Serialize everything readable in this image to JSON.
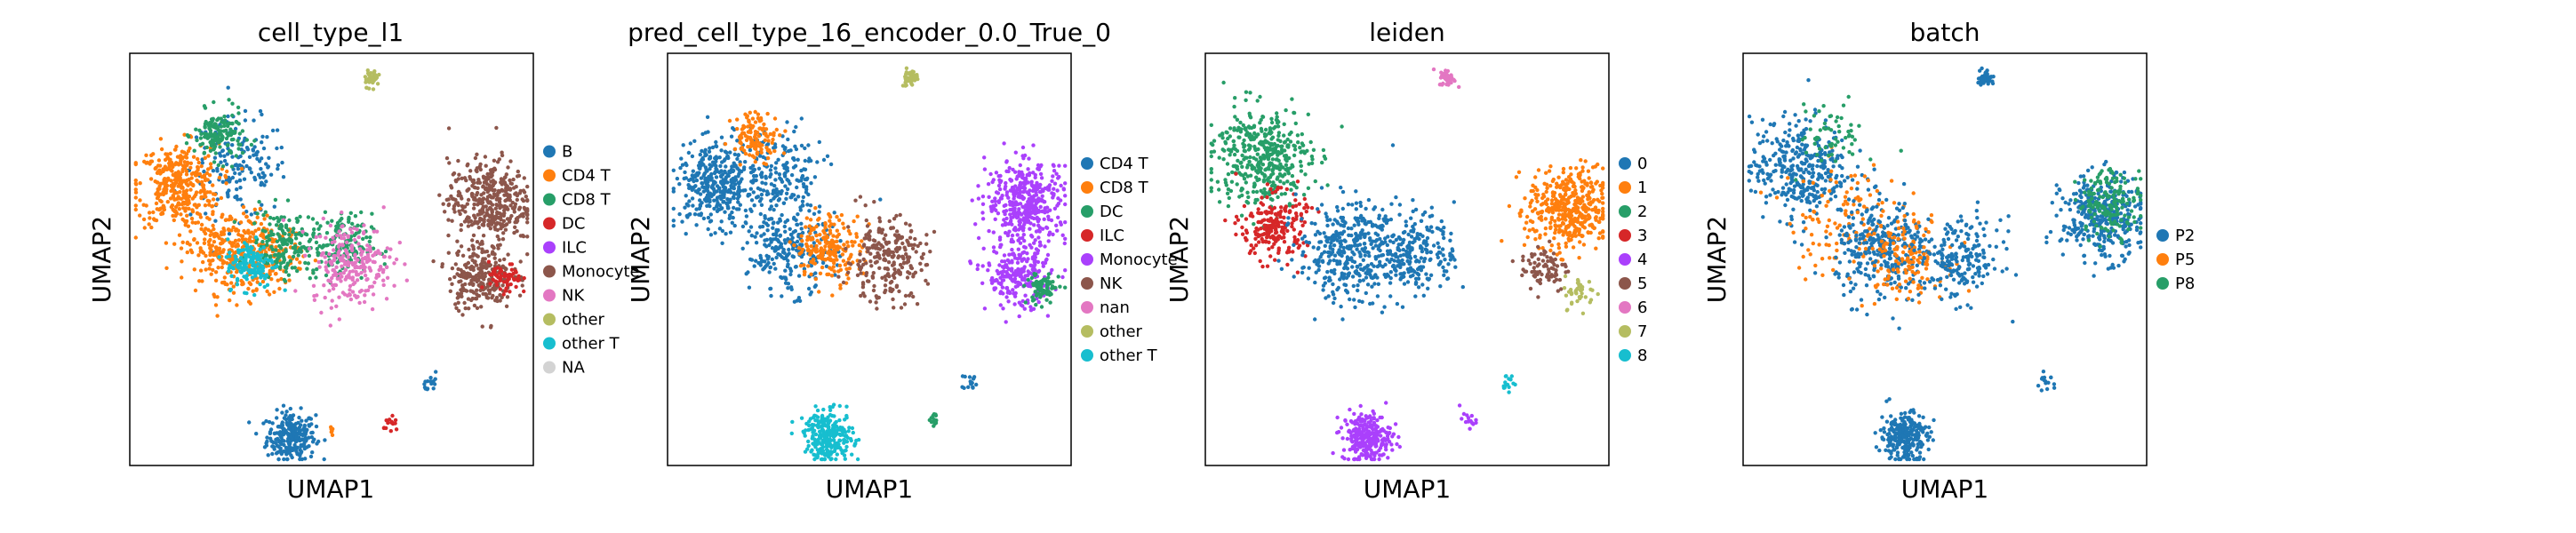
{
  "figure": {
    "background": "#ffffff"
  },
  "chart_data": [
    {
      "type": "scatter",
      "title": "cell_type_l1",
      "xlabel": "UMAP1",
      "ylabel": "UMAP2",
      "legend_placement": "right",
      "legend": [
        {
          "label": "B",
          "color": "#1f77b4"
        },
        {
          "label": "CD4 T",
          "color": "#ff7f0e"
        },
        {
          "label": "CD8 T",
          "color": "#279e68"
        },
        {
          "label": "DC",
          "color": "#d62728"
        },
        {
          "label": "ILC",
          "color": "#aa40fc"
        },
        {
          "label": "Monocyte",
          "color": "#8c564b"
        },
        {
          "label": "NK",
          "color": "#e377c2"
        },
        {
          "label": "other",
          "color": "#b5bd61"
        },
        {
          "label": "other T",
          "color": "#17becf"
        },
        {
          "label": "NA",
          "color": "#d3d3d3"
        }
      ],
      "clusters": [
        {
          "label": "B",
          "x": 0.4,
          "y": 0.07,
          "spread": 0.03,
          "n": 260
        },
        {
          "label": "B",
          "x": 0.27,
          "y": 0.72,
          "spread": 0.06,
          "n": 160
        },
        {
          "label": "CD4 T",
          "x": 0.12,
          "y": 0.68,
          "spread": 0.05,
          "n": 360
        },
        {
          "label": "CD4 T",
          "x": 0.24,
          "y": 0.52,
          "spread": 0.05,
          "n": 260
        },
        {
          "label": "CD4 T",
          "x": 0.35,
          "y": 0.51,
          "spread": 0.04,
          "n": 140
        },
        {
          "label": "CD8 T",
          "x": 0.22,
          "y": 0.8,
          "spread": 0.03,
          "n": 150
        },
        {
          "label": "CD8 T",
          "x": 0.38,
          "y": 0.54,
          "spread": 0.04,
          "n": 160
        },
        {
          "label": "CD8 T",
          "x": 0.52,
          "y": 0.53,
          "spread": 0.04,
          "n": 160
        },
        {
          "label": "other T",
          "x": 0.3,
          "y": 0.49,
          "spread": 0.03,
          "n": 140
        },
        {
          "label": "NK",
          "x": 0.55,
          "y": 0.49,
          "spread": 0.05,
          "n": 240
        },
        {
          "label": "Monocyte",
          "x": 0.89,
          "y": 0.64,
          "spread": 0.05,
          "n": 400
        },
        {
          "label": "Monocyte",
          "x": 0.87,
          "y": 0.46,
          "spread": 0.04,
          "n": 260
        },
        {
          "label": "DC",
          "x": 0.93,
          "y": 0.45,
          "spread": 0.02,
          "n": 60
        },
        {
          "label": "other",
          "x": 0.6,
          "y": 0.94,
          "spread": 0.01,
          "n": 40
        },
        {
          "label": "B",
          "x": 0.75,
          "y": 0.2,
          "spread": 0.01,
          "n": 15
        },
        {
          "label": "DC",
          "x": 0.65,
          "y": 0.1,
          "spread": 0.01,
          "n": 15
        },
        {
          "label": "CD4 T",
          "x": 0.5,
          "y": 0.08,
          "spread": 0.005,
          "n": 6
        }
      ]
    },
    {
      "type": "scatter",
      "title": "pred_cell_type_16_encoder_0.0_True_0",
      "xlabel": "UMAP1",
      "ylabel": "UMAP2",
      "legend_placement": "right",
      "legend": [
        {
          "label": "CD4 T",
          "color": "#1f77b4"
        },
        {
          "label": "CD8 T",
          "color": "#ff7f0e"
        },
        {
          "label": "DC",
          "color": "#279e68"
        },
        {
          "label": "ILC",
          "color": "#d62728"
        },
        {
          "label": "Monocyte",
          "color": "#aa40fc"
        },
        {
          "label": "NK",
          "color": "#8c564b"
        },
        {
          "label": "nan",
          "color": "#e377c2"
        },
        {
          "label": "other",
          "color": "#b5bd61"
        },
        {
          "label": "other T",
          "color": "#17becf"
        }
      ],
      "clusters": [
        {
          "label": "CD4 T",
          "x": 0.12,
          "y": 0.68,
          "spread": 0.05,
          "n": 360
        },
        {
          "label": "CD4 T",
          "x": 0.27,
          "y": 0.7,
          "spread": 0.06,
          "n": 200
        },
        {
          "label": "CD4 T",
          "x": 0.3,
          "y": 0.52,
          "spread": 0.05,
          "n": 240
        },
        {
          "label": "CD8 T",
          "x": 0.22,
          "y": 0.8,
          "spread": 0.03,
          "n": 120
        },
        {
          "label": "CD8 T",
          "x": 0.4,
          "y": 0.53,
          "spread": 0.04,
          "n": 200
        },
        {
          "label": "NK",
          "x": 0.54,
          "y": 0.5,
          "spread": 0.05,
          "n": 240
        },
        {
          "label": "Monocyte",
          "x": 0.89,
          "y": 0.64,
          "spread": 0.05,
          "n": 400
        },
        {
          "label": "Monocyte",
          "x": 0.87,
          "y": 0.46,
          "spread": 0.04,
          "n": 240
        },
        {
          "label": "DC",
          "x": 0.93,
          "y": 0.43,
          "spread": 0.02,
          "n": 80
        },
        {
          "label": "other",
          "x": 0.6,
          "y": 0.94,
          "spread": 0.01,
          "n": 40
        },
        {
          "label": "other T",
          "x": 0.4,
          "y": 0.07,
          "spread": 0.03,
          "n": 260
        },
        {
          "label": "CD4 T",
          "x": 0.75,
          "y": 0.2,
          "spread": 0.01,
          "n": 15
        },
        {
          "label": "DC",
          "x": 0.66,
          "y": 0.11,
          "spread": 0.01,
          "n": 15
        }
      ]
    },
    {
      "type": "scatter",
      "title": "leiden",
      "xlabel": "UMAP1",
      "ylabel": "UMAP2",
      "legend_placement": "right",
      "legend": [
        {
          "label": "0",
          "color": "#1f77b4"
        },
        {
          "label": "1",
          "color": "#ff7f0e"
        },
        {
          "label": "2",
          "color": "#279e68"
        },
        {
          "label": "3",
          "color": "#d62728"
        },
        {
          "label": "4",
          "color": "#aa40fc"
        },
        {
          "label": "5",
          "color": "#8c564b"
        },
        {
          "label": "6",
          "color": "#e377c2"
        },
        {
          "label": "7",
          "color": "#b5bd61"
        },
        {
          "label": "8",
          "color": "#17becf"
        }
      ],
      "clusters": [
        {
          "label": "2",
          "x": 0.14,
          "y": 0.75,
          "spread": 0.06,
          "n": 420
        },
        {
          "label": "3",
          "x": 0.17,
          "y": 0.58,
          "spread": 0.04,
          "n": 220
        },
        {
          "label": "0",
          "x": 0.35,
          "y": 0.52,
          "spread": 0.06,
          "n": 360
        },
        {
          "label": "0",
          "x": 0.52,
          "y": 0.52,
          "spread": 0.05,
          "n": 240
        },
        {
          "label": "1",
          "x": 0.9,
          "y": 0.62,
          "spread": 0.05,
          "n": 420
        },
        {
          "label": "5",
          "x": 0.84,
          "y": 0.48,
          "spread": 0.03,
          "n": 80
        },
        {
          "label": "7",
          "x": 0.93,
          "y": 0.42,
          "spread": 0.02,
          "n": 40
        },
        {
          "label": "6",
          "x": 0.6,
          "y": 0.94,
          "spread": 0.01,
          "n": 40
        },
        {
          "label": "4",
          "x": 0.4,
          "y": 0.07,
          "spread": 0.03,
          "n": 260
        },
        {
          "label": "8",
          "x": 0.75,
          "y": 0.2,
          "spread": 0.01,
          "n": 15
        },
        {
          "label": "4",
          "x": 0.65,
          "y": 0.11,
          "spread": 0.01,
          "n": 15
        }
      ]
    },
    {
      "type": "scatter",
      "title": "batch",
      "xlabel": "UMAP1",
      "ylabel": "UMAP2",
      "legend_placement": "right",
      "legend": [
        {
          "label": "P2",
          "color": "#1f77b4"
        },
        {
          "label": "P5",
          "color": "#ff7f0e"
        },
        {
          "label": "P8",
          "color": "#279e68"
        }
      ],
      "clusters": [
        {
          "label": "P2",
          "x": 0.14,
          "y": 0.72,
          "spread": 0.06,
          "n": 360
        },
        {
          "label": "P5",
          "x": 0.25,
          "y": 0.6,
          "spread": 0.07,
          "n": 120
        },
        {
          "label": "P2",
          "x": 0.35,
          "y": 0.52,
          "spread": 0.06,
          "n": 320
        },
        {
          "label": "P5",
          "x": 0.4,
          "y": 0.51,
          "spread": 0.05,
          "n": 140
        },
        {
          "label": "P2",
          "x": 0.54,
          "y": 0.5,
          "spread": 0.05,
          "n": 200
        },
        {
          "label": "P8",
          "x": 0.22,
          "y": 0.8,
          "spread": 0.04,
          "n": 60
        },
        {
          "label": "P2",
          "x": 0.89,
          "y": 0.6,
          "spread": 0.05,
          "n": 360
        },
        {
          "label": "P8",
          "x": 0.91,
          "y": 0.64,
          "spread": 0.04,
          "n": 160
        },
        {
          "label": "P2",
          "x": 0.6,
          "y": 0.94,
          "spread": 0.01,
          "n": 40
        },
        {
          "label": "P2",
          "x": 0.4,
          "y": 0.07,
          "spread": 0.03,
          "n": 260
        },
        {
          "label": "P2",
          "x": 0.75,
          "y": 0.2,
          "spread": 0.01,
          "n": 15
        }
      ]
    }
  ]
}
